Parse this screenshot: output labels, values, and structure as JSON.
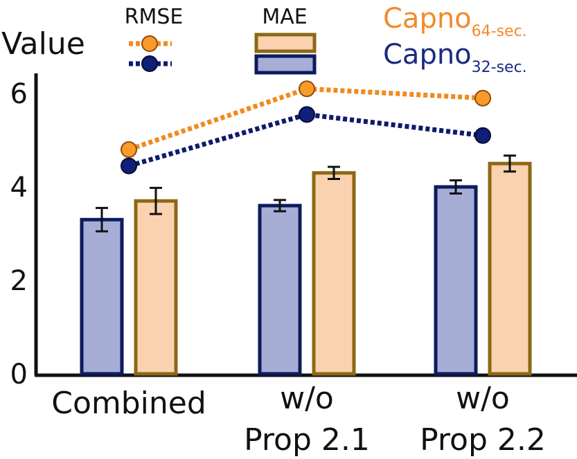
{
  "chart_data": {
    "type": "bar",
    "title": "",
    "ylabel": "Value",
    "xlabel": "",
    "ylim": [
      0,
      6.5
    ],
    "yticks": [
      0,
      2,
      4,
      6
    ],
    "categories": [
      {
        "lines": [
          "Combined"
        ]
      },
      {
        "lines": [
          "w/o",
          "Prop 2.1"
        ]
      },
      {
        "lines": [
          "w/o",
          "Prop 2.2"
        ]
      }
    ],
    "colors": {
      "capno32_fill": "#a6aed6",
      "capno32_edge": "#0d1b5e",
      "capno32_line": "#0d1b6b",
      "capno64_fill": "#fad2b0",
      "capno64_edge": "#8b6914",
      "capno64_line": "#f28a1e",
      "capno64_text": "#f28a2a",
      "capno32_text": "#1b2a80"
    },
    "legend": {
      "rmse_label": "RMSE",
      "mae_label": "MAE",
      "series": [
        {
          "base": "Capno",
          "sub": "64-sec."
        },
        {
          "base": "Capno",
          "sub": "32-sec."
        }
      ]
    },
    "mae_series": [
      {
        "name": "Capno 32-sec. MAE",
        "values": [
          3.3,
          3.6,
          4.0
        ],
        "errors": [
          0.25,
          0.12,
          0.14
        ]
      },
      {
        "name": "Capno 64-sec. MAE",
        "values": [
          3.7,
          4.3,
          4.5
        ],
        "errors": [
          0.28,
          0.13,
          0.17
        ]
      }
    ],
    "rmse_series": [
      {
        "name": "Capno 64-sec. RMSE",
        "values": [
          4.8,
          6.1,
          5.9
        ]
      },
      {
        "name": "Capno 32-sec. RMSE",
        "values": [
          4.45,
          5.55,
          5.1
        ]
      }
    ]
  }
}
